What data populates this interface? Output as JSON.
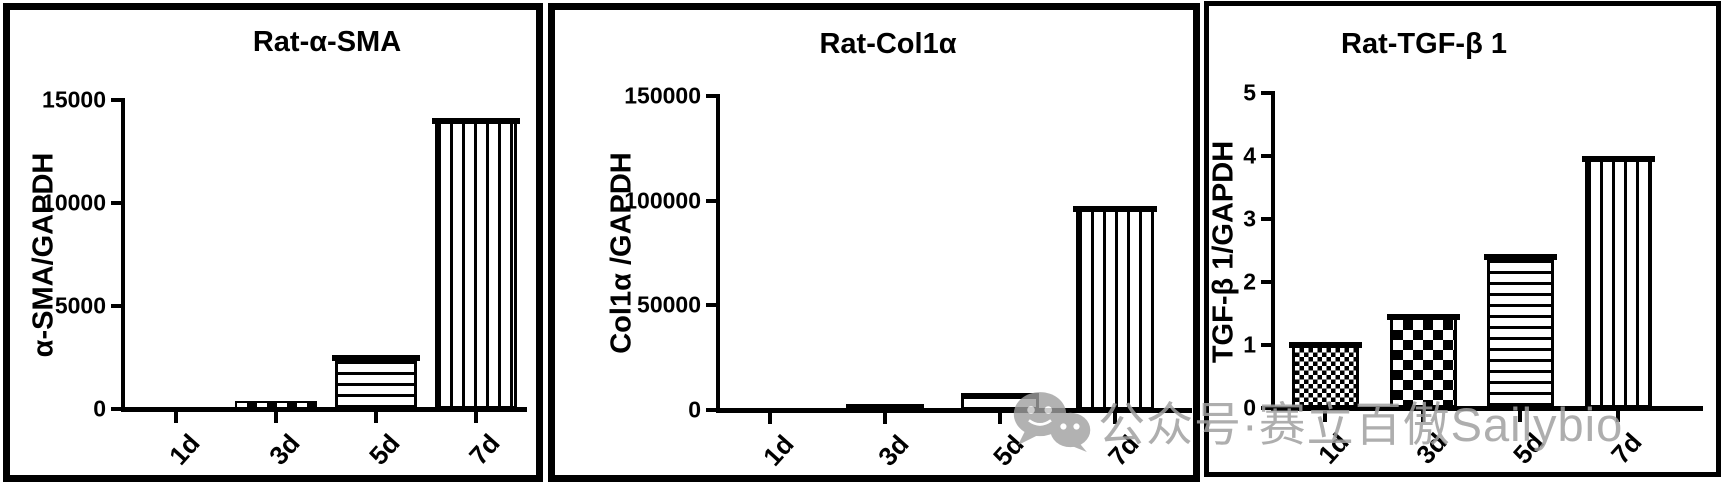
{
  "watermark": {
    "icon": "wechat-icon",
    "text": "公众号·赛立百傲Sailybio",
    "color": "#a0a0a0"
  },
  "chart_data": [
    {
      "type": "bar",
      "title": "Rat-α-SMA",
      "ylabel": "α-SMA/GAPDH",
      "xlabel": "",
      "categories": [
        "1d",
        "3d",
        "5d",
        "7d"
      ],
      "values": [
        0,
        400,
        2500,
        14000
      ],
      "yticks": [
        0,
        5000,
        10000,
        15000
      ],
      "ylim": [
        0,
        15000
      ],
      "patterns": [
        "none",
        "coarse-checker",
        "horizontal-lines",
        "vertical-lines"
      ],
      "bar_color": "#000000",
      "grid": false,
      "legend": "none"
    },
    {
      "type": "bar",
      "title": "Rat-Col1α",
      "ylabel": "Col1α /GAPDH",
      "xlabel": "",
      "categories": [
        "1d",
        "3d",
        "5d",
        "7d"
      ],
      "values": [
        0,
        1500,
        8000,
        96000
      ],
      "yticks": [
        0,
        50000,
        100000,
        150000
      ],
      "ylim": [
        0,
        150000
      ],
      "patterns": [
        "none",
        "solid",
        "horizontal-lines",
        "vertical-lines"
      ],
      "bar_color": "#000000",
      "grid": false,
      "legend": "none"
    },
    {
      "type": "bar",
      "title": "Rat-TGF-β 1",
      "ylabel": "TGF-β 1/GAPDH",
      "xlabel": "",
      "categories": [
        "1d",
        "3d",
        "5d",
        "7d"
      ],
      "values": [
        1.0,
        1.45,
        2.4,
        3.95
      ],
      "yticks": [
        0,
        1,
        2,
        3,
        4,
        5
      ],
      "ylim": [
        0,
        5
      ],
      "patterns": [
        "fine-checker",
        "coarse-checker",
        "horizontal-lines",
        "vertical-lines"
      ],
      "bar_color": "#000000",
      "grid": false,
      "legend": "none"
    }
  ]
}
